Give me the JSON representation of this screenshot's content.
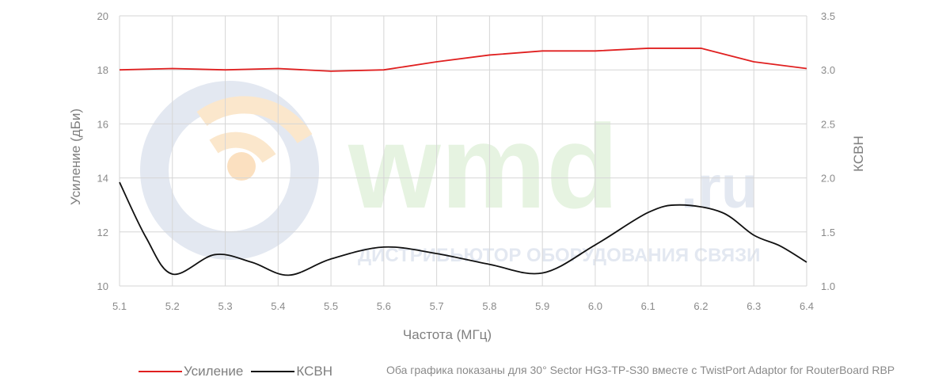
{
  "colors": {
    "gain": "#e02020",
    "vswr": "#111111",
    "grid": "#d6d6d6",
    "text": "#8a8a8a"
  },
  "watermark": {
    "brand": "wmd",
    "tld": ".ru",
    "tagline": "ДИСТРИБЬЮТОР ОБОРУДОВАНИЯ СВЯЗИ"
  },
  "chart_data": {
    "type": "line",
    "x": [
      5.1,
      5.2,
      5.3,
      5.4,
      5.5,
      5.6,
      5.7,
      5.8,
      5.9,
      6.0,
      6.1,
      6.2,
      6.3,
      6.4
    ],
    "x_ticks": [
      "5.1",
      "5.2",
      "5.3",
      "5.4",
      "5.5",
      "5.6",
      "5.7",
      "5.8",
      "5.9",
      "6.0",
      "6.1",
      "6.2",
      "6.3",
      "6.4"
    ],
    "xlabel": "Частота (МГц)",
    "ylabel": "Усиление (дБи)",
    "y2label": "КСВН",
    "ylim": [
      10,
      20
    ],
    "y_ticks": [
      "10",
      "12",
      "14",
      "16",
      "18",
      "20"
    ],
    "y2lim": [
      1.0,
      3.5
    ],
    "y2_ticks": [
      "1.0",
      "1.5",
      "2.0",
      "2.5",
      "3.0",
      "3.5"
    ],
    "grid": true,
    "legend": "bottom-left",
    "series": [
      {
        "name": "Усиление",
        "axis": "left",
        "color": "#e02020",
        "smooth": false,
        "values": [
          18.0,
          18.05,
          18.0,
          18.05,
          17.95,
          18.0,
          18.3,
          18.55,
          18.7,
          18.7,
          18.8,
          18.8,
          18.3,
          18.05
        ]
      },
      {
        "name": "КСВН",
        "axis": "right",
        "color": "#111111",
        "smooth": true,
        "x": [
          5.1,
          5.15,
          5.2,
          5.28,
          5.35,
          5.42,
          5.5,
          5.6,
          5.7,
          5.8,
          5.9,
          6.0,
          6.1,
          6.16,
          6.24,
          6.3,
          6.35,
          6.4
        ],
        "values": [
          1.96,
          1.45,
          1.11,
          1.29,
          1.22,
          1.1,
          1.25,
          1.36,
          1.3,
          1.2,
          1.12,
          1.38,
          1.68,
          1.75,
          1.68,
          1.47,
          1.37,
          1.22
        ]
      }
    ]
  },
  "legend_items": [
    {
      "label": "Усиление"
    },
    {
      "label": "КСВН"
    }
  ],
  "note": "Оба графика показаны для 30° Sector HG3-TP-S30 вместе с TwistPort Adaptor for RouterBoard RBP"
}
